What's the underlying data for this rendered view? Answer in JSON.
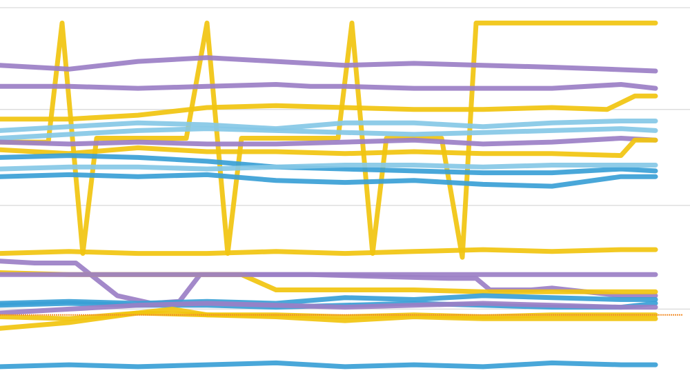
{
  "chart_data": {
    "type": "line",
    "title": "",
    "xlabel": "",
    "ylabel": "",
    "xlim": [
      0,
      100
    ],
    "ylim": [
      0,
      100
    ],
    "grid": true,
    "gridlines_y": [
      98,
      71.5,
      46.5,
      19.5
    ],
    "reference_line": {
      "y": 18,
      "color": "#f28e2b"
    },
    "colors": {
      "gold": "#f1c40f",
      "purple": "#9b7fc6",
      "blue": "#3a9fd6",
      "lightblue": "#86c8e6"
    },
    "series": [
      {
        "color": "#f1c40f",
        "x": [
          0,
          4,
          7,
          9,
          12,
          14,
          20,
          27,
          30,
          33,
          35,
          45,
          49,
          51,
          54,
          56,
          60,
          64,
          67,
          69,
          80,
          88,
          95
        ],
        "values": [
          63,
          63,
          63,
          94,
          34,
          64,
          64,
          64,
          94,
          34,
          64,
          64,
          64,
          94,
          34,
          64,
          64,
          64,
          33,
          94,
          94,
          94,
          94
        ]
      },
      {
        "color": "#9b7fc6",
        "x": [
          0,
          10,
          20,
          30,
          40,
          50,
          60,
          70,
          80,
          88,
          95
        ],
        "values": [
          83,
          82,
          84,
          85,
          84,
          83,
          83.5,
          83,
          82.5,
          82,
          81.5
        ]
      },
      {
        "color": "#9b7fc6",
        "x": [
          0,
          10,
          20,
          30,
          40,
          45,
          50,
          60,
          70,
          80,
          90,
          95
        ],
        "values": [
          77.5,
          77.5,
          77,
          77.5,
          78,
          77.5,
          77.5,
          77,
          77,
          77,
          78,
          77
        ]
      },
      {
        "color": "#f1c40f",
        "x": [
          0,
          10,
          20,
          30,
          40,
          50,
          60,
          70,
          80,
          88,
          92,
          95
        ],
        "values": [
          69,
          69,
          70,
          72,
          72.5,
          72,
          71.5,
          71.5,
          72,
          71.5,
          75,
          75
        ]
      },
      {
        "color": "#86c8e6",
        "x": [
          0,
          10,
          20,
          30,
          40,
          50,
          60,
          70,
          80,
          90,
          95
        ],
        "values": [
          66,
          67,
          68,
          67.5,
          66.5,
          68,
          68,
          67,
          68,
          68.5,
          68.5
        ]
      },
      {
        "color": "#86c8e6",
        "x": [
          0,
          10,
          20,
          30,
          40,
          50,
          60,
          70,
          80,
          90,
          95
        ],
        "values": [
          64,
          65,
          66,
          66.5,
          66,
          65.5,
          65,
          65.5,
          66,
          66.5,
          66
        ]
      },
      {
        "color": "#9b7fc6",
        "x": [
          0,
          10,
          20,
          30,
          40,
          50,
          60,
          70,
          80,
          90,
          95
        ],
        "values": [
          63,
          62.5,
          63,
          62.5,
          62.5,
          63,
          63.5,
          62.5,
          63,
          64,
          63.5
        ]
      },
      {
        "color": "#f1c40f",
        "x": [
          0,
          10,
          20,
          30,
          40,
          50,
          60,
          70,
          80,
          90,
          92,
          95
        ],
        "values": [
          61,
          60,
          61.5,
          60.5,
          60.5,
          60,
          60.5,
          60,
          60,
          59.5,
          63.5,
          63.5
        ]
      },
      {
        "color": "#3a9fd6",
        "x": [
          0,
          10,
          20,
          30,
          40,
          50,
          60,
          70,
          80,
          90,
          95
        ],
        "values": [
          59,
          59.5,
          59,
          58,
          56.5,
          56,
          55.5,
          55,
          55,
          56,
          55.5
        ]
      },
      {
        "color": "#86c8e6",
        "x": [
          0,
          10,
          20,
          30,
          40,
          50,
          60,
          70,
          80,
          90,
          95
        ],
        "values": [
          56,
          56.5,
          56.5,
          56,
          56.5,
          57,
          57,
          56.5,
          57,
          57,
          57
        ]
      },
      {
        "color": "#3a9fd6",
        "x": [
          0,
          10,
          20,
          30,
          40,
          50,
          60,
          70,
          80,
          90,
          95
        ],
        "values": [
          54,
          54.5,
          54,
          54.5,
          53,
          52.5,
          53,
          52,
          51.5,
          54,
          54
        ]
      },
      {
        "color": "#f1c40f",
        "x": [
          0,
          10,
          20,
          30,
          40,
          50,
          60,
          70,
          80,
          90,
          95
        ],
        "values": [
          34,
          34.5,
          34,
          34,
          34.5,
          34,
          34.5,
          35,
          34.5,
          35,
          35
        ]
      },
      {
        "color": "#9b7fc6",
        "x": [
          0,
          5,
          11,
          17,
          22,
          26,
          29,
          35,
          45,
          55,
          65,
          69,
          71,
          77,
          80,
          90,
          95
        ],
        "values": [
          32,
          31.5,
          31.5,
          23,
          21,
          21.5,
          28.5,
          28.5,
          28.5,
          28,
          27.5,
          27.5,
          24.5,
          24.5,
          25,
          23,
          23
        ]
      },
      {
        "color": "#f1c40f",
        "x": [
          0,
          10,
          20,
          30,
          35,
          40,
          50,
          60,
          70,
          80,
          90,
          95
        ],
        "values": [
          29,
          28.5,
          28.5,
          28.5,
          28.5,
          24.5,
          24.5,
          24.5,
          24,
          24,
          24,
          24
        ]
      },
      {
        "color": "#9b7fc6",
        "x": [
          0,
          10,
          20,
          30,
          40,
          50,
          60,
          70,
          80,
          90,
          95
        ],
        "values": [
          28.5,
          28.5,
          28.5,
          28.5,
          28.5,
          28.5,
          28.5,
          28.5,
          28.5,
          28.5,
          28.5
        ]
      },
      {
        "color": "#3a9fd6",
        "x": [
          0,
          10,
          20,
          30,
          40,
          50,
          60,
          70,
          80,
          90,
          95
        ],
        "values": [
          21,
          21.5,
          21,
          21.5,
          21,
          22.5,
          22,
          23,
          22.5,
          22,
          22
        ]
      },
      {
        "color": "#3a9fd6",
        "x": [
          0,
          10,
          20,
          30,
          40,
          50,
          60,
          70,
          80,
          90,
          95
        ],
        "values": [
          20.5,
          21,
          20.5,
          20.5,
          20,
          20.5,
          21,
          20.5,
          20,
          20,
          21
        ]
      },
      {
        "color": "#9b7fc6",
        "x": [
          0,
          10,
          20,
          30,
          40,
          50,
          60,
          70,
          80,
          90,
          95
        ],
        "values": [
          18.5,
          19.5,
          20.5,
          21,
          20.5,
          20,
          20.5,
          21,
          20.5,
          20,
          20
        ]
      },
      {
        "color": "#f1c40f",
        "x": [
          0,
          10,
          20,
          25,
          30,
          40,
          50,
          60,
          70,
          80,
          90,
          95
        ],
        "values": [
          14.5,
          16,
          18.5,
          19.5,
          18,
          18,
          17.5,
          18,
          17.5,
          18,
          18,
          18
        ]
      },
      {
        "color": "#f1c40f",
        "x": [
          0,
          10,
          20,
          30,
          40,
          50,
          60,
          70,
          80,
          90,
          95
        ],
        "values": [
          17.5,
          17,
          18.5,
          18,
          17.5,
          16.5,
          17.5,
          17,
          17,
          17,
          17
        ]
      },
      {
        "color": "#3a9fd6",
        "x": [
          0,
          10,
          20,
          30,
          40,
          50,
          60,
          70,
          80,
          90,
          95
        ],
        "values": [
          4.5,
          5,
          4.5,
          5,
          5.5,
          4.5,
          5,
          4.5,
          5.5,
          5,
          5
        ]
      }
    ]
  }
}
